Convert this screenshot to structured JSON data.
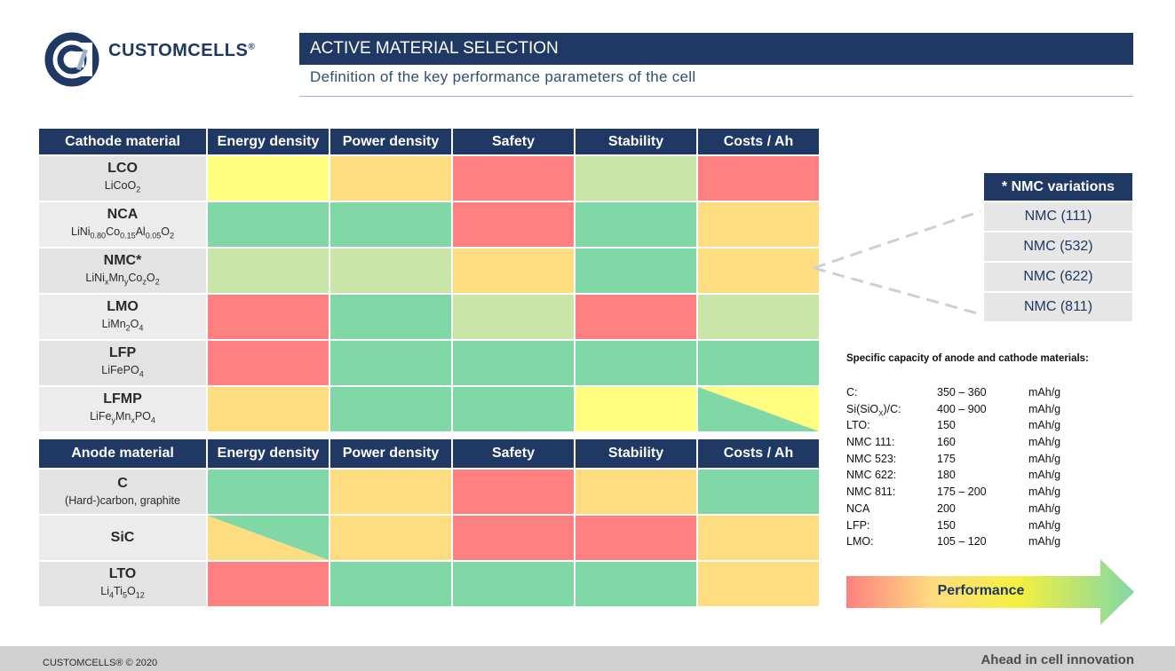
{
  "header": {
    "brand": "CUSTOMCELLS",
    "brand_mark": "®",
    "title": "ACTIVE MATERIAL SELECTION",
    "subtitle": "Definition of the key performance parameters of the cell"
  },
  "colors": {
    "best": "#80d8a6",
    "good": "#c9e6a8",
    "medium": "#fedc80",
    "fair": "#fffe80",
    "poor": "#fe8080",
    "navy": "#1f3864"
  },
  "cathode": {
    "headers": [
      "Cathode material",
      "Energy density",
      "Power density",
      "Safety",
      "Stability",
      "Costs / Ah"
    ],
    "rows": [
      {
        "name": "LCO",
        "ratings": [
          "fair",
          "medium",
          "poor",
          "good",
          "poor"
        ]
      },
      {
        "name": "NCA",
        "ratings": [
          "best",
          "best",
          "poor",
          "best",
          "medium"
        ]
      },
      {
        "name": "NMC*",
        "ratings": [
          "good",
          "good",
          "medium",
          "best",
          "medium"
        ]
      },
      {
        "name": "LMO",
        "ratings": [
          "poor",
          "best",
          "good",
          "poor",
          "good"
        ]
      },
      {
        "name": "LFP",
        "ratings": [
          "poor",
          "best",
          "best",
          "best",
          "best"
        ]
      },
      {
        "name": "LFMP",
        "ratings": [
          "medium",
          "best",
          "best",
          "fair",
          "fair/best"
        ]
      }
    ]
  },
  "anode": {
    "headers": [
      "Anode material",
      "Energy density",
      "Power density",
      "Safety",
      "Stability",
      "Costs / Ah"
    ],
    "rows": [
      {
        "name": "C",
        "sub": "(Hard-)carbon, graphite",
        "ratings": [
          "best",
          "medium",
          "poor",
          "medium",
          "best"
        ]
      },
      {
        "name": "SiC",
        "sub": "",
        "ratings": [
          "medium/best",
          "medium",
          "poor",
          "poor",
          "medium"
        ]
      },
      {
        "name": "LTO",
        "ratings": [
          "poor",
          "best",
          "best",
          "best",
          "medium"
        ]
      }
    ]
  },
  "nmc_variations": {
    "title": "* NMC variations",
    "items": [
      "NMC (111)",
      "NMC (532)",
      "NMC (622)",
      "NMC (811)"
    ]
  },
  "specific_capacity": {
    "title": "Specific capacity of anode and cathode materials:",
    "unit": "mAh/g",
    "rows": [
      {
        "name": "C:",
        "value": "350 – 360"
      },
      {
        "name": "Si(SiOX)/C:",
        "value": "400 – 900"
      },
      {
        "name": "LTO:",
        "value": "150"
      },
      {
        "name": "NMC 111:",
        "value": "160"
      },
      {
        "name": "NMC 523:",
        "value": "175"
      },
      {
        "name": "NMC 622:",
        "value": "180"
      },
      {
        "name": "NMC 811:",
        "value": "175 – 200"
      },
      {
        "name": "NCA",
        "value": "200"
      },
      {
        "name": "LFP:",
        "value": "150"
      },
      {
        "name": "LMO:",
        "value": "105 – 120"
      }
    ]
  },
  "performance_label": "Performance",
  "footer": {
    "copyright": "CUSTOMCELLS® © 2020",
    "tagline": "Ahead in cell innovation"
  }
}
